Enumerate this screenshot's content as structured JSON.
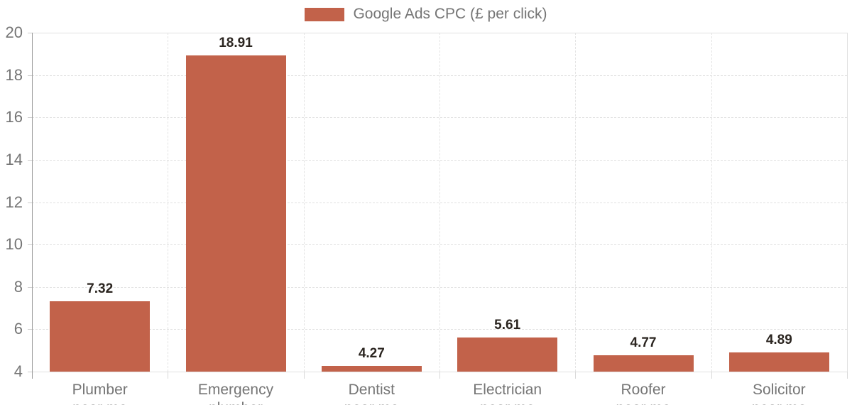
{
  "legend": {
    "label": "Google Ads CPC (£ per click)"
  },
  "colors": {
    "bar": "#c2624a",
    "grid": "#e0e0e0",
    "axis": "#9a9a9a",
    "tick_label": "#757575",
    "value_label": "#2b2520"
  },
  "chart_data": {
    "type": "bar",
    "title": "",
    "series_name": "Google Ads CPC (£ per click)",
    "categories": [
      "Plumber near me",
      "Emergency plumber",
      "Dentist near me",
      "Electrician near me",
      "Roofer near me",
      "Solicitor near me"
    ],
    "category_lines": [
      [
        "Plumber",
        "near me"
      ],
      [
        "Emergency",
        "plumber"
      ],
      [
        "Dentist",
        "near me"
      ],
      [
        "Electrician",
        "near me"
      ],
      [
        "Roofer",
        "near me"
      ],
      [
        "Solicitor",
        "near me"
      ]
    ],
    "values": [
      7.32,
      18.91,
      4.27,
      5.61,
      4.77,
      4.89
    ],
    "value_labels": [
      "7.32",
      "18.91",
      "4.27",
      "5.61",
      "4.77",
      "4.89"
    ],
    "xlabel": "",
    "ylabel": "",
    "ylim": [
      4,
      20
    ],
    "yticks": [
      4,
      6,
      8,
      10,
      12,
      14,
      16,
      18,
      20
    ],
    "grid": true,
    "legend_position": "top-center"
  }
}
